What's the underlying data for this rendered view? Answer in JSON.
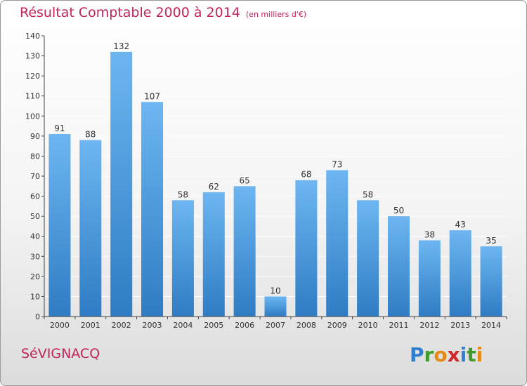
{
  "header": {
    "title": "Résultat Comptable 2000 à 2014",
    "unit": "(en milliers d'€)"
  },
  "footer": {
    "commune": "SéVIGNACQ",
    "logo_letters": [
      "P",
      "r",
      "o",
      "x",
      "i",
      "t",
      "i"
    ],
    "logo_colors": [
      "#2f7fd0",
      "#3f9b2a",
      "#e58a14",
      "#d02828",
      "#2f7fd0",
      "#3f9b2a",
      "#e58a14"
    ]
  },
  "colors": {
    "bar": "#4d9ee0",
    "bar_light": "#6db6f1",
    "bar_dark": "#2f7cc4",
    "title": "#c0245c",
    "grid": "#ffffff",
    "axis": "#444444"
  },
  "chart_data": {
    "type": "bar",
    "categories": [
      "2000",
      "2001",
      "2002",
      "2003",
      "2004",
      "2005",
      "2006",
      "2007",
      "2008",
      "2009",
      "2010",
      "2011",
      "2012",
      "2013",
      "2014"
    ],
    "series": [
      {
        "values": [
          91,
          88,
          132,
          107,
          58,
          62,
          65,
          10,
          68,
          73,
          58,
          50,
          38,
          43,
          35
        ]
      }
    ],
    "ylim": [
      0,
      140
    ],
    "yticks": [
      0,
      10,
      20,
      30,
      40,
      50,
      60,
      70,
      80,
      90,
      100,
      110,
      120,
      130,
      140
    ],
    "data_labels": true,
    "grid": "horizontal"
  }
}
